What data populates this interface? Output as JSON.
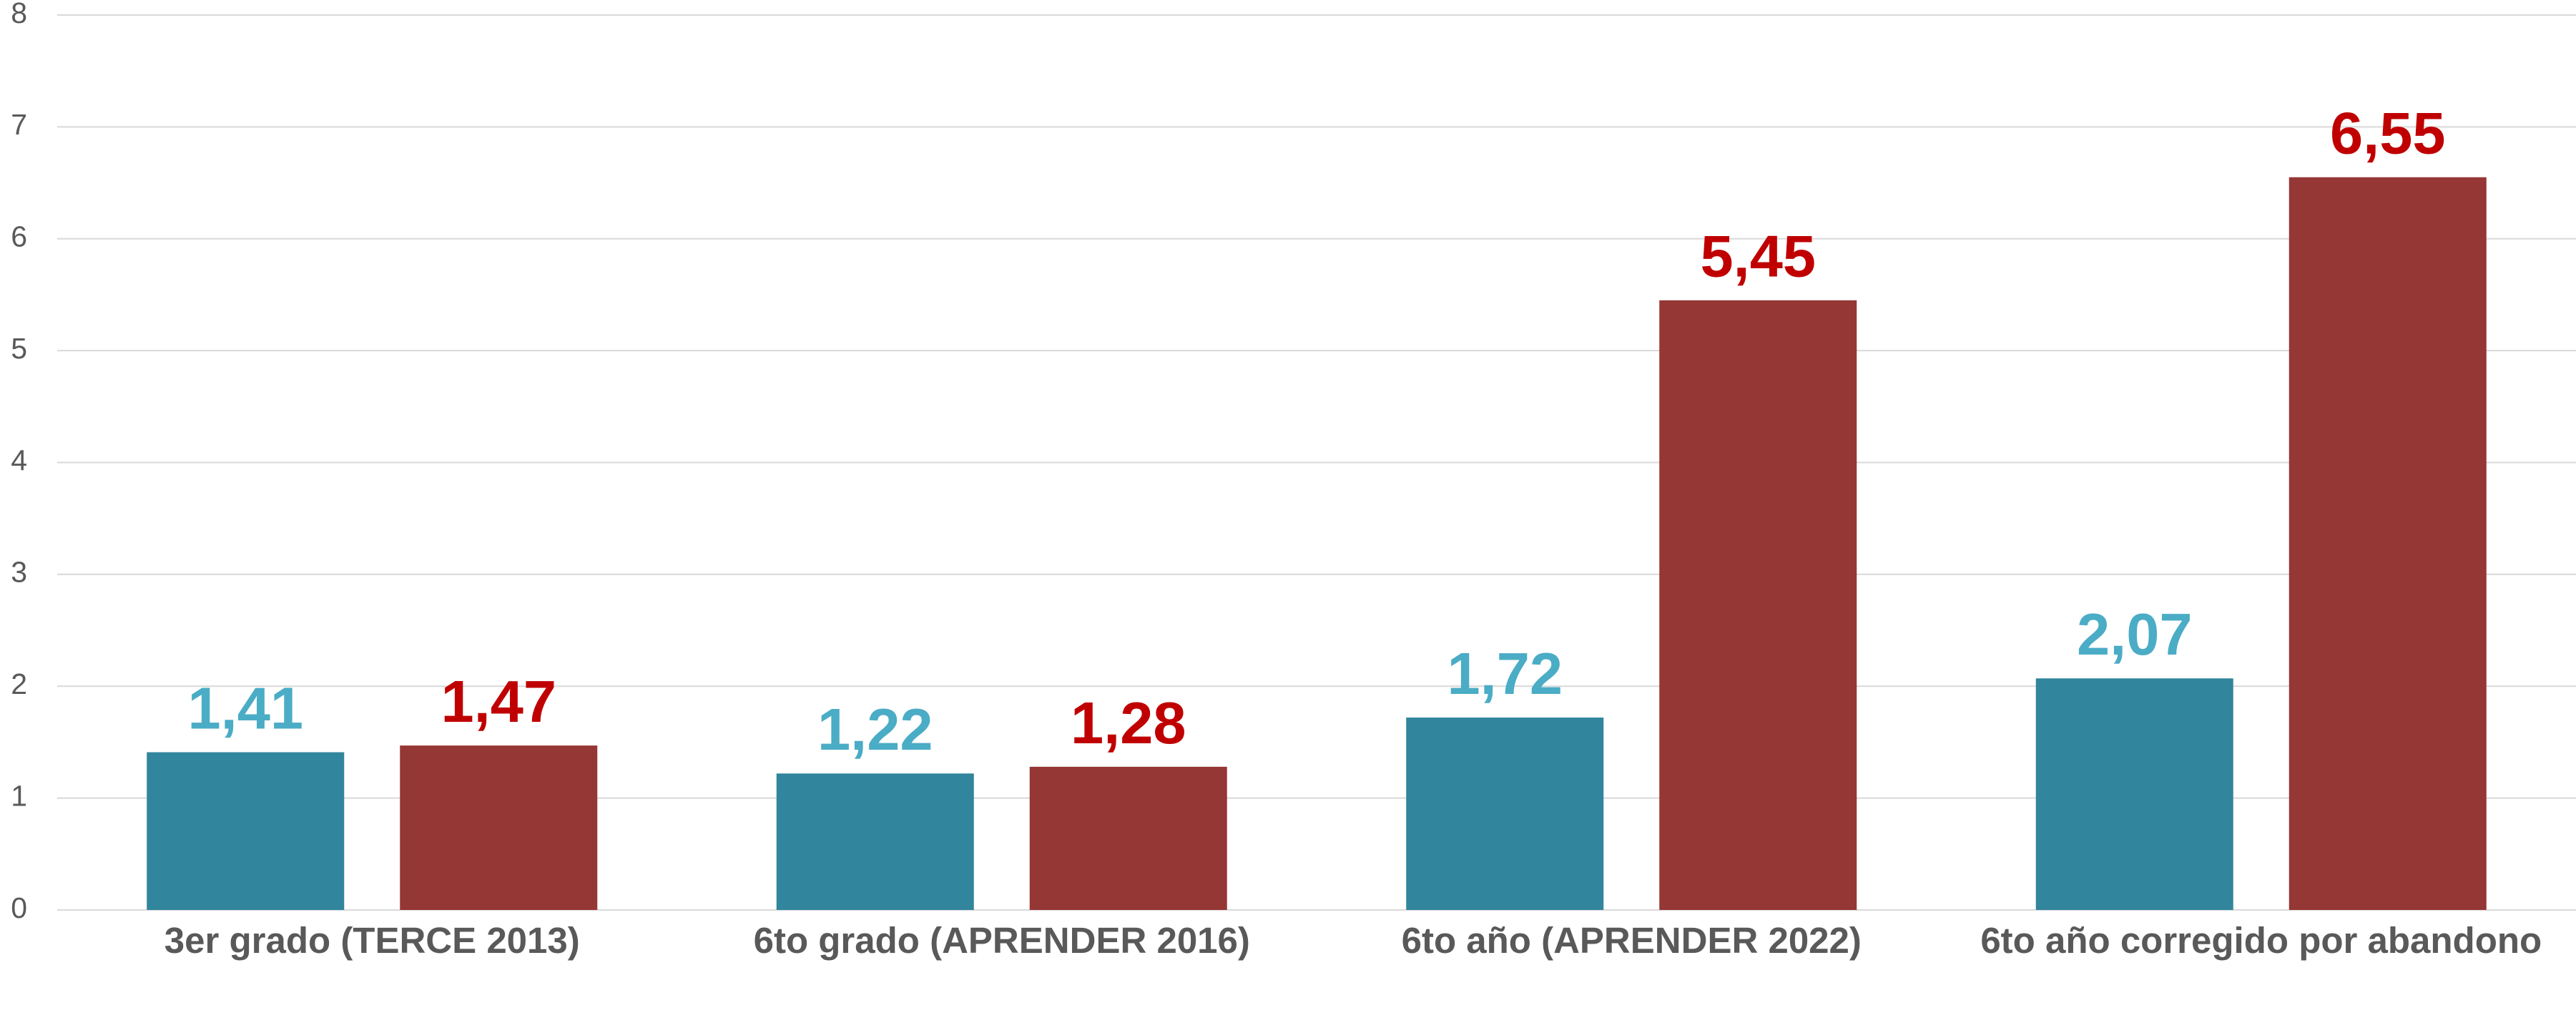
{
  "chart_data": {
    "type": "bar",
    "categories": [
      "3er grado (TERCE 2013)",
      "6to grado (APRENDER 2016)",
      "6to año (APRENDER 2022)",
      "6to año corregido por abandono"
    ],
    "series": [
      {
        "color": "#31859c",
        "label_color": "#4bacc6",
        "values": [
          1.41,
          1.22,
          1.72,
          2.07
        ],
        "value_labels": [
          "1,41",
          "1,22",
          "1,72",
          "2,07"
        ]
      },
      {
        "color": "#953735",
        "label_color": "#c00000",
        "values": [
          1.47,
          1.28,
          5.45,
          6.55
        ],
        "value_labels": [
          "1,47",
          "1,28",
          "5,45",
          "6,55"
        ]
      }
    ],
    "ylim": [
      0,
      8
    ],
    "yticks": [
      0,
      1,
      2,
      3,
      4,
      5,
      6,
      7,
      8
    ],
    "grid": true
  }
}
